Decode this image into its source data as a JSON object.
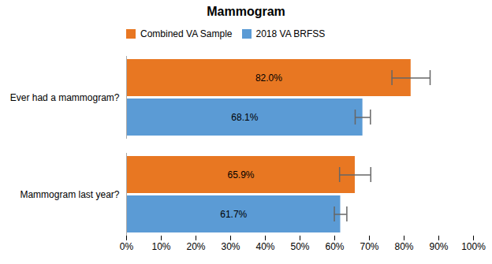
{
  "chart_data": {
    "type": "bar",
    "orientation": "horizontal",
    "title": "Mammogram",
    "categories": [
      "Ever had a mammogram?",
      "Mammogram last year?"
    ],
    "series": [
      {
        "name": "Combined VA Sample",
        "color": "#E87722",
        "values": [
          82.0,
          65.9
        ],
        "value_labels": [
          "82.0%",
          "65.9%"
        ],
        "errors": [
          5.5,
          4.5
        ]
      },
      {
        "name": "2018 VA BRFSS",
        "color": "#5B9BD5",
        "values": [
          68.1,
          61.7
        ],
        "value_labels": [
          "68.1%",
          "61.7%"
        ],
        "errors": [
          2.2,
          1.8
        ]
      }
    ],
    "data_labels": true,
    "legend": "top",
    "grid": false,
    "xlim": [
      0,
      100
    ],
    "xticks": [
      {
        "value": 0,
        "label": "0%"
      },
      {
        "value": 10,
        "label": "10%"
      },
      {
        "value": 20,
        "label": "20%"
      },
      {
        "value": 30,
        "label": "30%"
      },
      {
        "value": 40,
        "label": "40%"
      },
      {
        "value": 50,
        "label": "50%"
      },
      {
        "value": 60,
        "label": "60%"
      },
      {
        "value": 70,
        "label": "70%"
      },
      {
        "value": 80,
        "label": "80%"
      },
      {
        "value": 90,
        "label": "90%"
      },
      {
        "value": 100,
        "label": "100%"
      }
    ]
  }
}
